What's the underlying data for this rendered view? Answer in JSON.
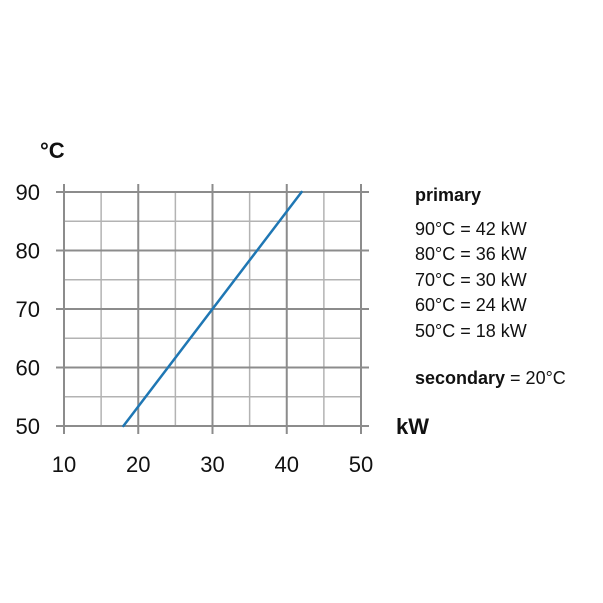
{
  "chart_data": {
    "type": "line",
    "x_unit": "kW",
    "y_unit": "°C",
    "xlim": [
      10,
      50
    ],
    "ylim": [
      50,
      90
    ],
    "x_ticks": [
      "10",
      "20",
      "30",
      "40",
      "50"
    ],
    "y_ticks": [
      "50",
      "60",
      "70",
      "80",
      "90"
    ],
    "grid": true,
    "series": [
      {
        "color": "#1f77b4",
        "points": [
          [
            18,
            50
          ],
          [
            42,
            90
          ]
        ]
      }
    ],
    "legend": {
      "title": "primary",
      "entries": [
        "90°C = 42 kW",
        "80°C = 36 kW",
        "70°C = 30 kW",
        "60°C = 24 kW",
        "50°C = 18 kW"
      ],
      "secondary_label": "secondary",
      "secondary_value": " = 20°C"
    }
  }
}
